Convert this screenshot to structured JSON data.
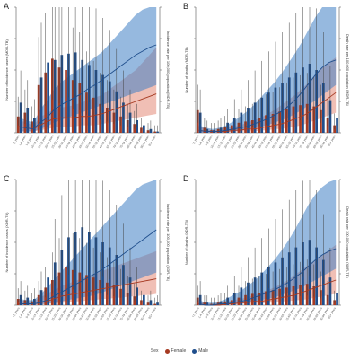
{
  "legend": {
    "title": "Sex",
    "items": [
      {
        "label": "Female",
        "color": "#a63a22"
      },
      {
        "label": "Male",
        "color": "#1f4e8c"
      }
    ]
  },
  "colors": {
    "female_bar": "#a63a22",
    "male_bar": "#1f4e8c",
    "female_band": "#e48a78",
    "male_band": "#3f7fc4",
    "overlap_band": "#8a6f8f",
    "error_bar": "#444444",
    "axis": "#555555"
  },
  "chart_data": [
    {
      "panel": "A",
      "type": "bar",
      "ylabel": "Number of incidence cases (MDR-TB)",
      "y2label": "Incidence rate per 100,000 population (MDR-TB)",
      "categories": [
        "<1 years",
        "1-4 years",
        "5-9 years",
        "10-14 years",
        "15-19 years",
        "20-24 years",
        "25-29 years",
        "30-34 years",
        "35-39 years",
        "40-44 years",
        "45-49 years",
        "50-54 years",
        "55-59 years",
        "60-64 years",
        "65-69 years",
        "70-74 years",
        "75-79 years",
        "80-84 years",
        "85-89 years",
        "90-94 years",
        "95+ years"
      ],
      "ylim": [
        0,
        100
      ],
      "y2lim": [
        0,
        100
      ],
      "series": [
        {
          "name": "Female",
          "kind": "bar",
          "values": [
            13,
            16,
            9,
            38,
            48,
            59,
            52,
            50,
            42,
            40,
            32,
            28,
            23,
            20,
            16,
            13,
            10,
            7,
            4,
            2,
            1
          ]
        },
        {
          "name": "Male",
          "kind": "bar",
          "values": [
            24,
            20,
            12,
            44,
            56,
            58,
            62,
            63,
            64,
            58,
            54,
            50,
            46,
            41,
            33,
            24,
            16,
            10,
            6,
            3,
            1
          ]
        },
        {
          "name": "Female",
          "kind": "line",
          "values": [
            5,
            4,
            3,
            6,
            9,
            11,
            12,
            12,
            12,
            13,
            13,
            14,
            15,
            17,
            19,
            21,
            23,
            25,
            27,
            29,
            31
          ]
        },
        {
          "name": "Male",
          "kind": "line",
          "values": [
            5,
            4,
            3,
            8,
            12,
            18,
            22,
            25,
            28,
            31,
            35,
            38,
            42,
            46,
            50,
            54,
            58,
            62,
            65,
            68,
            70
          ]
        }
      ],
      "bands": [
        {
          "name": "Female",
          "lower": [
            1,
            1,
            1,
            2,
            3,
            4,
            5,
            5,
            5,
            6,
            6,
            6,
            7,
            8,
            9,
            10,
            11,
            12,
            13,
            14,
            15
          ],
          "upper": [
            10,
            8,
            6,
            12,
            16,
            18,
            20,
            21,
            22,
            24,
            26,
            28,
            30,
            34,
            38,
            42,
            46,
            50,
            56,
            62,
            68
          ]
        },
        {
          "name": "Male",
          "lower": [
            1,
            1,
            1,
            3,
            5,
            8,
            10,
            12,
            14,
            16,
            18,
            20,
            22,
            24,
            26,
            28,
            30,
            32,
            34,
            36,
            38
          ],
          "upper": [
            12,
            10,
            8,
            18,
            26,
            34,
            40,
            44,
            48,
            52,
            56,
            60,
            64,
            70,
            76,
            82,
            88,
            94,
            98,
            100,
            100
          ]
        }
      ]
    },
    {
      "panel": "B",
      "type": "bar",
      "ylabel": "Number of deaths (MDR-TB)",
      "y2label": "Death rate per 100,000 population (MDR-TB)",
      "categories": [
        "<1 years",
        "1-4 years",
        "5-9 years",
        "10-14 years",
        "15-19 years",
        "20-24 years",
        "25-29 years",
        "30-34 years",
        "35-39 years",
        "40-44 years",
        "45-49 years",
        "50-54 years",
        "55-59 years",
        "60-64 years",
        "65-69 years",
        "70-74 years",
        "75-79 years",
        "80-84 years",
        "85-89 years",
        "90-94 years",
        "95+ years"
      ],
      "ylim": [
        0,
        100
      ],
      "y2lim": [
        0,
        100
      ],
      "series": [
        {
          "name": "Female",
          "kind": "bar",
          "values": [
            18,
            4,
            2,
            3,
            5,
            6,
            8,
            9,
            10,
            12,
            14,
            15,
            17,
            19,
            21,
            22,
            23,
            21,
            18,
            12,
            6
          ]
        },
        {
          "name": "Male",
          "kind": "bar",
          "values": [
            16,
            3,
            2,
            4,
            8,
            12,
            16,
            20,
            24,
            28,
            32,
            36,
            40,
            44,
            48,
            52,
            55,
            50,
            40,
            26,
            12
          ]
        },
        {
          "name": "Female",
          "kind": "line",
          "values": [
            2,
            1,
            1,
            1,
            1,
            2,
            2,
            3,
            3,
            4,
            5,
            6,
            7,
            9,
            11,
            13,
            16,
            20,
            24,
            28,
            32
          ]
        },
        {
          "name": "Male",
          "kind": "line",
          "values": [
            2,
            1,
            1,
            1,
            2,
            3,
            4,
            5,
            7,
            9,
            11,
            14,
            17,
            21,
            26,
            32,
            39,
            46,
            52,
            56,
            58
          ]
        }
      ],
      "bands": [
        {
          "name": "Female",
          "lower": [
            0,
            0,
            0,
            0,
            0,
            1,
            1,
            1,
            1,
            2,
            2,
            3,
            3,
            4,
            5,
            6,
            8,
            10,
            12,
            14,
            16
          ],
          "upper": [
            5,
            3,
            2,
            3,
            4,
            5,
            6,
            8,
            10,
            12,
            15,
            18,
            22,
            26,
            30,
            35,
            40,
            46,
            52,
            56,
            60
          ]
        },
        {
          "name": "Male",
          "lower": [
            0,
            0,
            0,
            0,
            1,
            1,
            2,
            3,
            4,
            5,
            6,
            8,
            10,
            12,
            15,
            18,
            22,
            26,
            30,
            34,
            38
          ],
          "upper": [
            6,
            4,
            3,
            4,
            6,
            9,
            13,
            17,
            22,
            28,
            34,
            40,
            47,
            55,
            63,
            72,
            82,
            92,
            100,
            100,
            100
          ]
        }
      ]
    },
    {
      "panel": "C",
      "type": "bar",
      "ylabel": "Number of incidence cases (XDR-TB)",
      "y2label": "Incidence rate per 100,000 population (XDR-TB)",
      "categories": [
        "<1 years",
        "1-4 years",
        "5-9 years",
        "10-14 years",
        "15-19 years",
        "20-24 years",
        "25-29 years",
        "30-34 years",
        "35-39 years",
        "40-44 years",
        "45-49 years",
        "50-54 years",
        "55-59 years",
        "60-64 years",
        "65-69 years",
        "70-74 years",
        "75-79 years",
        "80-84 years",
        "85-89 years",
        "90-94 years",
        "95+ years"
      ],
      "ylim": [
        0,
        100
      ],
      "y2lim": [
        0,
        100
      ],
      "series": [
        {
          "name": "Female",
          "kind": "bar",
          "values": [
            5,
            4,
            3,
            8,
            14,
            20,
            26,
            30,
            28,
            26,
            24,
            22,
            20,
            18,
            16,
            13,
            10,
            7,
            4,
            2,
            1
          ]
        },
        {
          "name": "Male",
          "kind": "bar",
          "values": [
            8,
            6,
            5,
            12,
            22,
            34,
            44,
            54,
            58,
            62,
            58,
            54,
            50,
            46,
            40,
            32,
            22,
            14,
            8,
            4,
            2
          ]
        },
        {
          "name": "Female",
          "kind": "line",
          "values": [
            1,
            1,
            1,
            2,
            3,
            5,
            7,
            8,
            9,
            10,
            11,
            12,
            13,
            14,
            15,
            16,
            17,
            18,
            19,
            20,
            21
          ]
        },
        {
          "name": "Male",
          "kind": "line",
          "values": [
            1,
            1,
            1,
            2,
            4,
            7,
            10,
            13,
            16,
            19,
            22,
            25,
            28,
            32,
            36,
            40,
            44,
            48,
            52,
            56,
            60
          ]
        }
      ],
      "bands": [
        {
          "name": "Female",
          "lower": [
            0,
            0,
            0,
            0,
            1,
            1,
            2,
            2,
            3,
            3,
            4,
            4,
            5,
            5,
            6,
            6,
            7,
            7,
            8,
            8,
            9
          ],
          "upper": [
            4,
            3,
            3,
            6,
            9,
            12,
            15,
            17,
            19,
            21,
            23,
            25,
            27,
            29,
            31,
            33,
            35,
            37,
            39,
            41,
            43
          ]
        },
        {
          "name": "Male",
          "lower": [
            0,
            0,
            0,
            1,
            1,
            2,
            3,
            4,
            5,
            6,
            7,
            8,
            10,
            12,
            14,
            16,
            18,
            20,
            22,
            24,
            26
          ],
          "upper": [
            5,
            4,
            4,
            8,
            14,
            20,
            26,
            32,
            38,
            44,
            50,
            56,
            62,
            68,
            74,
            80,
            86,
            92,
            96,
            98,
            100
          ]
        }
      ]
    },
    {
      "panel": "D",
      "type": "bar",
      "ylabel": "Number of deaths (XDR-TB)",
      "y2label": "Death rate per 100,000 population (XDR-TB)",
      "categories": [
        "<1 years",
        "1-4 years",
        "5-9 years",
        "10-14 years",
        "15-19 years",
        "20-24 years",
        "25-29 years",
        "30-34 years",
        "35-39 years",
        "40-44 years",
        "45-49 years",
        "50-54 years",
        "55-59 years",
        "60-64 years",
        "65-69 years",
        "70-74 years",
        "75-79 years",
        "80-84 years",
        "85-89 years",
        "90-94 years",
        "95+ years"
      ],
      "ylim": [
        0,
        100
      ],
      "y2lim": [
        0,
        100
      ],
      "series": [
        {
          "name": "Female",
          "kind": "bar",
          "values": [
            6,
            2,
            1,
            2,
            3,
            4,
            6,
            8,
            9,
            10,
            11,
            12,
            13,
            14,
            15,
            16,
            17,
            15,
            12,
            8,
            4
          ]
        },
        {
          "name": "Male",
          "kind": "bar",
          "values": [
            8,
            2,
            1,
            3,
            6,
            10,
            14,
            18,
            22,
            26,
            30,
            34,
            38,
            42,
            46,
            50,
            52,
            46,
            36,
            22,
            10
          ]
        },
        {
          "name": "Female",
          "kind": "line",
          "values": [
            1,
            0,
            0,
            0,
            1,
            1,
            2,
            2,
            3,
            3,
            4,
            5,
            6,
            7,
            8,
            10,
            12,
            14,
            16,
            18,
            20
          ]
        },
        {
          "name": "Male",
          "kind": "line",
          "values": [
            1,
            0,
            0,
            1,
            1,
            2,
            3,
            4,
            6,
            8,
            10,
            12,
            15,
            18,
            22,
            26,
            31,
            36,
            40,
            43,
            45
          ]
        }
      ],
      "bands": [
        {
          "name": "Female",
          "lower": [
            0,
            0,
            0,
            0,
            0,
            0,
            1,
            1,
            1,
            1,
            2,
            2,
            3,
            3,
            4,
            4,
            5,
            6,
            7,
            8,
            9
          ],
          "upper": [
            3,
            2,
            1,
            2,
            3,
            4,
            5,
            6,
            8,
            10,
            12,
            14,
            17,
            20,
            24,
            28,
            32,
            36,
            40,
            44,
            48
          ]
        },
        {
          "name": "Male",
          "lower": [
            0,
            0,
            0,
            0,
            0,
            1,
            1,
            2,
            3,
            4,
            5,
            6,
            8,
            10,
            12,
            14,
            17,
            20,
            23,
            26,
            29
          ],
          "upper": [
            4,
            2,
            2,
            3,
            5,
            8,
            11,
            15,
            19,
            24,
            30,
            36,
            43,
            51,
            60,
            70,
            80,
            88,
            94,
            98,
            100
          ]
        }
      ]
    }
  ]
}
